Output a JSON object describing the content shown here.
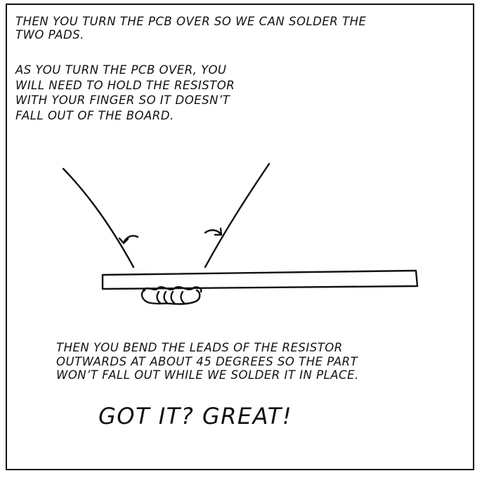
{
  "panel": {
    "caption_top": [
      "Then you turn the PCB over so we can solder the",
      "two pads."
    ],
    "caption_mid": [
      "As you turn the PCB over, you",
      "will need to hold the resistor",
      "with your finger so it doesn’t",
      "fall out of the board."
    ],
    "caption_bottom": [
      "Then you bend the leads of the resistor",
      "outwards at about 45 degrees so the part",
      "won’t fall out while we solder it in place."
    ],
    "exclamation": "Got it? Great!"
  },
  "illustration": {
    "ink_color": "#111111",
    "paper_color": "#ffffff",
    "lead_bend_angle_degrees": 45
  }
}
